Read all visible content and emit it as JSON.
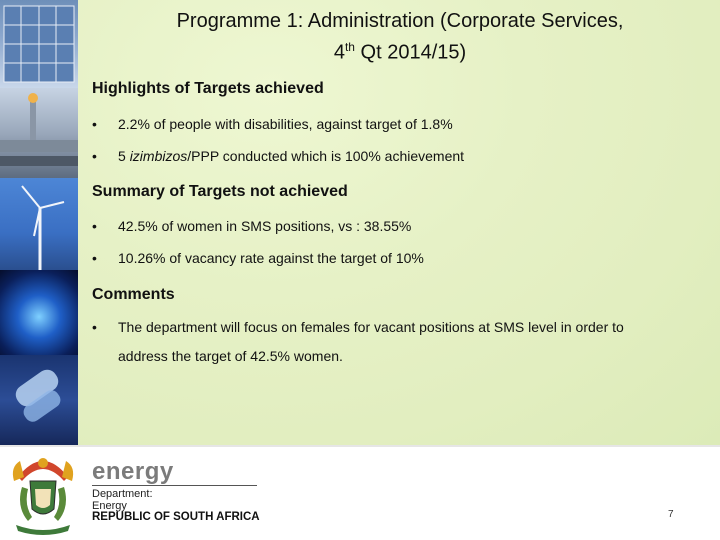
{
  "title_line1": "Programme 1: Administration (Corporate Services,",
  "title_line2_pre": "4",
  "title_line2_sup": "th",
  "title_line2_post": " Qt 2014/15)",
  "sections": [
    {
      "heading": "Highlights of Targets achieved",
      "bullets": [
        "2.2% of people with disabilities, against target of 1.8%"
      ]
    },
    {
      "heading": "Summary of Targets not achieved",
      "bullets": [
        "42.5% of women in SMS positions, vs : 38.55%",
        "10.26% of vacancy rate against the target of 10%"
      ]
    },
    {
      "heading": "Comments",
      "bullets": [
        "The department will focus on females for vacant positions at SMS level in order to"
      ]
    }
  ],
  "bullet_symbol": "•",
  "bullet2_italic": "izimbizos",
  "bullet2_rest": "/PPP conducted which is 100%  achievement",
  "bullet2_lead": "5 ",
  "comment_continuation": "address the target of 42.5% women.",
  "footer": {
    "brand": "energy",
    "dept_line1": "Department:",
    "dept_line2": "Energy",
    "country": "REPUBLIC OF SOUTH AFRICA",
    "page_number": "7"
  },
  "colors": {
    "content_bg": "#e4f0c3",
    "brand_grey": "#7b7b7b"
  }
}
